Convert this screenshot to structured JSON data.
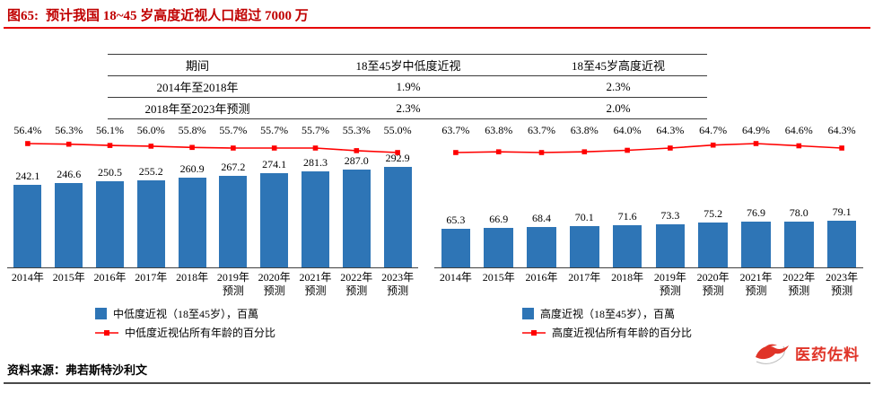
{
  "title": {
    "prefix": "图65:",
    "text": "预计我国 18~45 岁高度近视人口超过 7000 万"
  },
  "table": {
    "columns": [
      "期间",
      "18至45岁中低度近视",
      "18至45岁高度近视"
    ],
    "rows": [
      {
        "period": "2014年至2018年",
        "low": "1.9%",
        "high": "2.3%"
      },
      {
        "period": "2018年至2023年预测",
        "low": "2.3%",
        "high": "2.0%"
      }
    ]
  },
  "source": {
    "label": "资料来源：",
    "value": "弗若斯特沙利文"
  },
  "watermark": {
    "text": "医药佐料"
  },
  "colors": {
    "bar": "#2e75b6",
    "line": "#ff0000",
    "title": "#c00000"
  },
  "chart_data": [
    {
      "type": "bar",
      "categories": [
        "2014年",
        "2015年",
        "2016年",
        "2017年",
        "2018年",
        "2019年\n预测",
        "2020年\n预测",
        "2021年\n预测",
        "2022年\n预测",
        "2023年\n预测"
      ],
      "bars": {
        "name": "中低度近视（18至45岁），百萬",
        "values": [
          242.1,
          246.6,
          250.5,
          255.2,
          260.9,
          267.2,
          274.1,
          281.3,
          287.0,
          292.9
        ],
        "color": "#2e75b6"
      },
      "line": {
        "name": "中低度近视佔所有年龄的百分比",
        "values": [
          56.4,
          56.3,
          56.1,
          56.0,
          55.8,
          55.7,
          55.7,
          55.7,
          55.3,
          55.0
        ],
        "unit": "%",
        "color": "#ff0000"
      },
      "ylim": [
        0,
        380
      ],
      "grid": false,
      "legend_position": "bottom"
    },
    {
      "type": "bar",
      "categories": [
        "2014年",
        "2015年",
        "2016年",
        "2017年",
        "2018年",
        "2019年\n预测",
        "2020年\n预测",
        "2021年\n预测",
        "2022年\n预测",
        "2023年\n预测"
      ],
      "bars": {
        "name": "高度近视（18至45岁），百萬",
        "values": [
          65.3,
          66.9,
          68.4,
          70.1,
          71.6,
          73.3,
          75.2,
          76.9,
          78.0,
          79.1
        ],
        "color": "#2e75b6"
      },
      "line": {
        "name": "高度近视佔所有年龄的百分比",
        "values": [
          63.7,
          63.8,
          63.7,
          63.8,
          64.0,
          64.3,
          64.7,
          64.9,
          64.6,
          64.3
        ],
        "unit": "%",
        "color": "#ff0000"
      },
      "ylim": [
        0,
        220
      ],
      "grid": false,
      "legend_position": "bottom"
    }
  ]
}
